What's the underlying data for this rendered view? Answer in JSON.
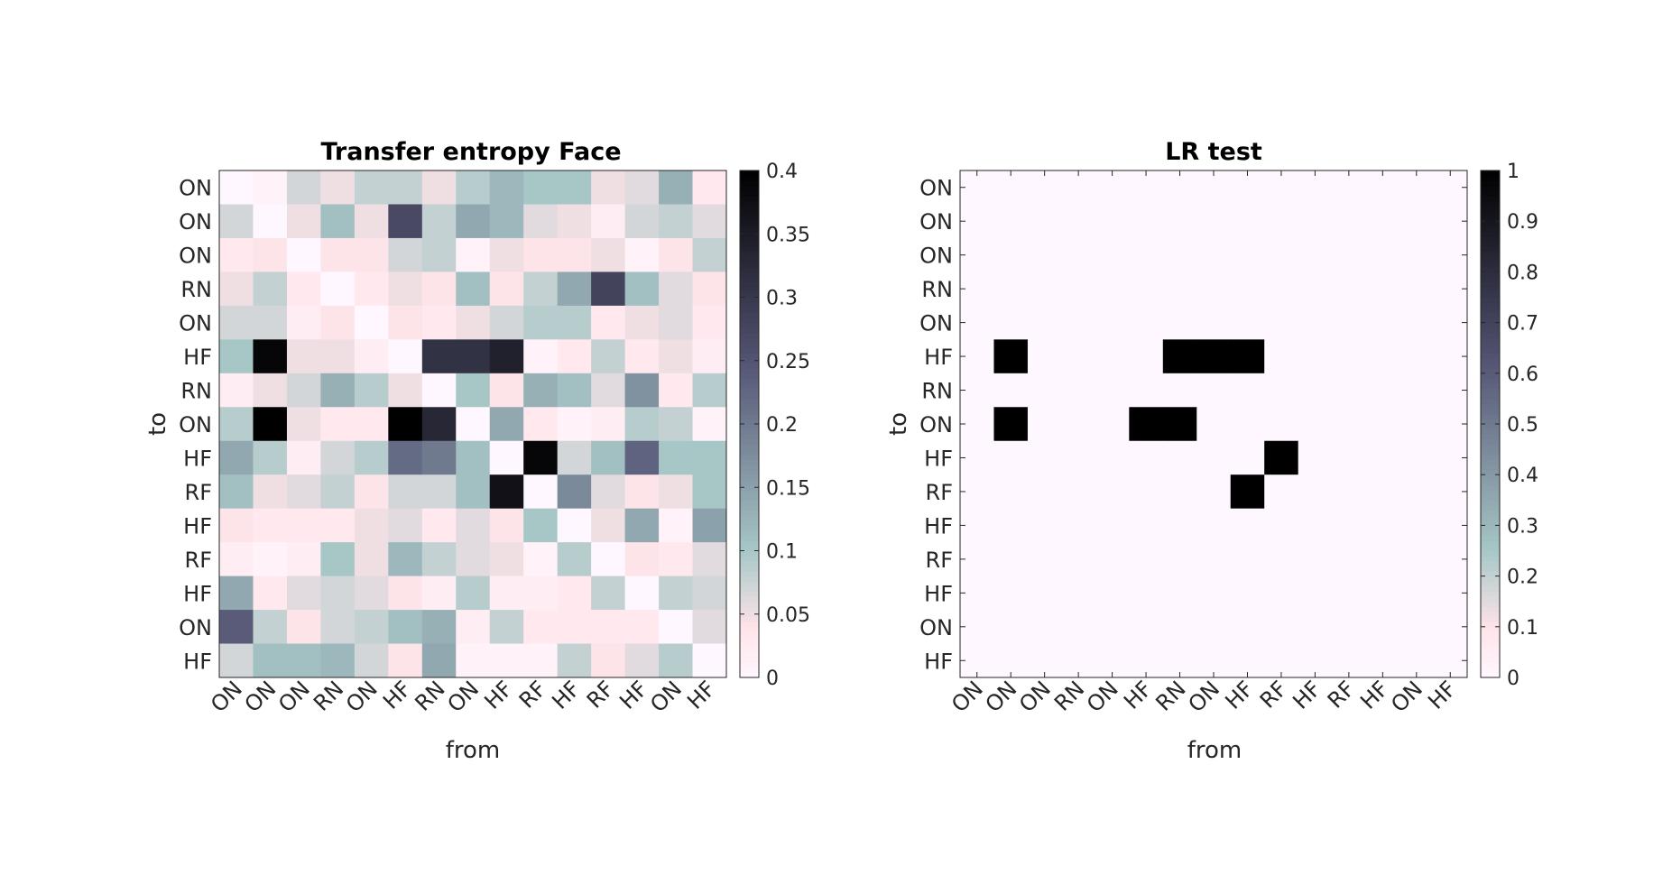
{
  "chart_data": [
    {
      "type": "heatmap",
      "title": "Transfer entropy Face",
      "xlabel": "from",
      "ylabel": "to",
      "x_tick_labels": [
        "ON",
        "ON",
        "ON",
        "RN",
        "ON",
        "HF",
        "RN",
        "ON",
        "HF",
        "RF",
        "HF",
        "RF",
        "HF",
        "ON",
        "HF"
      ],
      "y_tick_labels": [
        "ON",
        "ON",
        "ON",
        "RN",
        "ON",
        "HF",
        "RN",
        "ON",
        "HF",
        "RF",
        "HF",
        "RF",
        "HF",
        "ON",
        "HF"
      ],
      "colorbar": {
        "range": [
          0,
          0.4
        ],
        "ticks": [
          0,
          0.05,
          0.1,
          0.15,
          0.2,
          0.25,
          0.3,
          0.35,
          0.4
        ],
        "tick_labels": [
          "0",
          "0.05",
          "0.1",
          "0.15",
          "0.2",
          "0.25",
          "0.3",
          "0.35",
          "0.4"
        ]
      },
      "colormap": "bone (reversed)",
      "values": [
        [
          0.0,
          0.01,
          0.07,
          0.05,
          0.08,
          0.08,
          0.05,
          0.09,
          0.12,
          0.1,
          0.1,
          0.05,
          0.06,
          0.13,
          0.03
        ],
        [
          0.07,
          0.0,
          0.05,
          0.11,
          0.05,
          0.27,
          0.08,
          0.14,
          0.12,
          0.06,
          0.05,
          0.02,
          0.07,
          0.08,
          0.06
        ],
        [
          0.03,
          0.04,
          0.0,
          0.04,
          0.04,
          0.07,
          0.08,
          0.01,
          0.05,
          0.04,
          0.04,
          0.05,
          0.01,
          0.04,
          0.08
        ],
        [
          0.05,
          0.08,
          0.03,
          0.0,
          0.03,
          0.05,
          0.04,
          0.11,
          0.04,
          0.08,
          0.14,
          0.28,
          0.11,
          0.06,
          0.04
        ],
        [
          0.07,
          0.07,
          0.02,
          0.04,
          0.0,
          0.04,
          0.03,
          0.05,
          0.07,
          0.09,
          0.09,
          0.03,
          0.05,
          0.06,
          0.03
        ],
        [
          0.1,
          0.39,
          0.05,
          0.05,
          0.02,
          0.0,
          0.31,
          0.31,
          0.34,
          0.01,
          0.03,
          0.08,
          0.03,
          0.05,
          0.02
        ],
        [
          0.02,
          0.05,
          0.07,
          0.13,
          0.09,
          0.05,
          0.0,
          0.1,
          0.04,
          0.13,
          0.11,
          0.06,
          0.17,
          0.03,
          0.09
        ],
        [
          0.09,
          0.4,
          0.05,
          0.03,
          0.03,
          0.4,
          0.33,
          0.0,
          0.14,
          0.03,
          0.01,
          0.02,
          0.09,
          0.08,
          0.01
        ],
        [
          0.14,
          0.09,
          0.02,
          0.07,
          0.09,
          0.22,
          0.2,
          0.11,
          0.0,
          0.39,
          0.07,
          0.11,
          0.23,
          0.1,
          0.1
        ],
        [
          0.11,
          0.05,
          0.06,
          0.08,
          0.04,
          0.07,
          0.07,
          0.11,
          0.37,
          0.0,
          0.18,
          0.06,
          0.04,
          0.05,
          0.1
        ],
        [
          0.04,
          0.03,
          0.03,
          0.03,
          0.05,
          0.06,
          0.03,
          0.06,
          0.04,
          0.1,
          0.0,
          0.05,
          0.14,
          0.01,
          0.15
        ],
        [
          0.02,
          0.01,
          0.02,
          0.1,
          0.05,
          0.12,
          0.08,
          0.06,
          0.05,
          0.01,
          0.09,
          0.0,
          0.04,
          0.03,
          0.06
        ],
        [
          0.14,
          0.03,
          0.06,
          0.07,
          0.06,
          0.04,
          0.02,
          0.09,
          0.02,
          0.02,
          0.03,
          0.08,
          0.0,
          0.08,
          0.07
        ],
        [
          0.24,
          0.08,
          0.04,
          0.07,
          0.08,
          0.11,
          0.13,
          0.02,
          0.08,
          0.03,
          0.03,
          0.03,
          0.03,
          0.0,
          0.06
        ],
        [
          0.07,
          0.11,
          0.11,
          0.12,
          0.07,
          0.04,
          0.14,
          0.01,
          0.01,
          0.01,
          0.08,
          0.04,
          0.06,
          0.09,
          0.0
        ]
      ]
    },
    {
      "type": "heatmap",
      "title": "LR test",
      "xlabel": "from",
      "ylabel": "to",
      "x_tick_labels": [
        "ON",
        "ON",
        "ON",
        "RN",
        "ON",
        "HF",
        "RN",
        "ON",
        "HF",
        "RF",
        "HF",
        "RF",
        "HF",
        "ON",
        "HF"
      ],
      "y_tick_labels": [
        "ON",
        "ON",
        "ON",
        "RN",
        "ON",
        "HF",
        "RN",
        "ON",
        "HF",
        "RF",
        "HF",
        "RF",
        "HF",
        "ON",
        "HF"
      ],
      "colorbar": {
        "range": [
          0,
          1
        ],
        "ticks": [
          0,
          0.1,
          0.2,
          0.3,
          0.4,
          0.5,
          0.6,
          0.7,
          0.8,
          0.9,
          1
        ],
        "tick_labels": [
          "0",
          "0.1",
          "0.2",
          "0.3",
          "0.4",
          "0.5",
          "0.6",
          "0.7",
          "0.8",
          "0.9",
          "1"
        ]
      },
      "colormap": "bone (reversed)",
      "values": [
        [
          0,
          0,
          0,
          0,
          0,
          0,
          0,
          0,
          0,
          0,
          0,
          0,
          0,
          0,
          0
        ],
        [
          0,
          0,
          0,
          0,
          0,
          0,
          0,
          0,
          0,
          0,
          0,
          0,
          0,
          0,
          0
        ],
        [
          0,
          0,
          0,
          0,
          0,
          0,
          0,
          0,
          0,
          0,
          0,
          0,
          0,
          0,
          0
        ],
        [
          0,
          0,
          0,
          0,
          0,
          0,
          0,
          0,
          0,
          0,
          0,
          0,
          0,
          0,
          0
        ],
        [
          0,
          0,
          0,
          0,
          0,
          0,
          0,
          0,
          0,
          0,
          0,
          0,
          0,
          0,
          0
        ],
        [
          0,
          1,
          0,
          0,
          0,
          0,
          1,
          1,
          1,
          0,
          0,
          0,
          0,
          0,
          0
        ],
        [
          0,
          0,
          0,
          0,
          0,
          0,
          0,
          0,
          0,
          0,
          0,
          0,
          0,
          0,
          0
        ],
        [
          0,
          1,
          0,
          0,
          0,
          1,
          1,
          0,
          0,
          0,
          0,
          0,
          0,
          0,
          0
        ],
        [
          0,
          0,
          0,
          0,
          0,
          0,
          0,
          0,
          0,
          1,
          0,
          0,
          0,
          0,
          0
        ],
        [
          0,
          0,
          0,
          0,
          0,
          0,
          0,
          0,
          1,
          0,
          0,
          0,
          0,
          0,
          0
        ],
        [
          0,
          0,
          0,
          0,
          0,
          0,
          0,
          0,
          0,
          0,
          0,
          0,
          0,
          0,
          0
        ],
        [
          0,
          0,
          0,
          0,
          0,
          0,
          0,
          0,
          0,
          0,
          0,
          0,
          0,
          0,
          0
        ],
        [
          0,
          0,
          0,
          0,
          0,
          0,
          0,
          0,
          0,
          0,
          0,
          0,
          0,
          0,
          0
        ],
        [
          0,
          0,
          0,
          0,
          0,
          0,
          0,
          0,
          0,
          0,
          0,
          0,
          0,
          0,
          0
        ],
        [
          0,
          0,
          0,
          0,
          0,
          0,
          0,
          0,
          0,
          0,
          0,
          0,
          0,
          0,
          0
        ]
      ]
    }
  ]
}
